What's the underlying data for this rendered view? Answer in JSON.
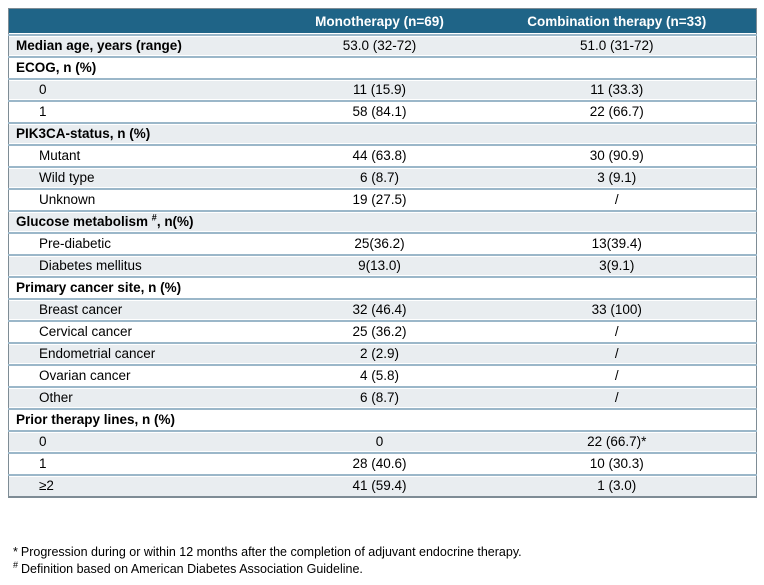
{
  "colors": {
    "header_bg": "#1F6487",
    "header_text": "#FFFFFF",
    "shaded_row": "#E9EDF0",
    "row_line": "#9BB7C9",
    "outer_border": "#7E8C95",
    "text": "#000000"
  },
  "table": {
    "columns": [
      "",
      "Monotherapy (n=69)",
      "Combination therapy (n=33)"
    ],
    "rows": [
      {
        "label": "Median age, years (range)",
        "bold": true,
        "shaded": true,
        "values": [
          "53.0 (32-72)",
          "51.0 (31-72)"
        ]
      },
      {
        "label": "ECOG, n (%)",
        "section": true,
        "shaded": false
      },
      {
        "label": "0",
        "indent": true,
        "shaded": true,
        "values": [
          "11 (15.9)",
          "11 (33.3)"
        ]
      },
      {
        "label": "1",
        "indent": true,
        "shaded": false,
        "values": [
          "58 (84.1)",
          "22 (66.7)"
        ]
      },
      {
        "label": "PIK3CA-status, n (%)",
        "section": true,
        "shaded": true
      },
      {
        "label": "Mutant",
        "indent": true,
        "shaded": false,
        "values": [
          "44 (63.8)",
          "30 (90.9)"
        ]
      },
      {
        "label": "Wild type",
        "indent": true,
        "shaded": true,
        "values": [
          "6 (8.7)",
          "3 (9.1)"
        ]
      },
      {
        "label": "Unknown",
        "indent": true,
        "shaded": false,
        "values": [
          "19 (27.5)",
          "/"
        ]
      },
      {
        "label": "Glucose metabolism ",
        "label_sup": "#",
        "label_post": ", n(%)",
        "section": true,
        "shaded": true
      },
      {
        "label": "Pre-diabetic",
        "indent": true,
        "shaded": false,
        "values": [
          "25(36.2)",
          "13(39.4)"
        ]
      },
      {
        "label": "Diabetes mellitus",
        "indent": true,
        "shaded": true,
        "values": [
          "9(13.0)",
          "3(9.1)"
        ]
      },
      {
        "label": "Primary cancer site, n (%)",
        "section": true,
        "shaded": false
      },
      {
        "label": "Breast cancer",
        "indent": true,
        "shaded": true,
        "values": [
          "32 (46.4)",
          "33 (100)"
        ]
      },
      {
        "label": "Cervical cancer",
        "indent": true,
        "shaded": false,
        "values": [
          "25 (36.2)",
          "/"
        ]
      },
      {
        "label": "Endometrial cancer",
        "indent": true,
        "shaded": true,
        "values": [
          "2 (2.9)",
          "/"
        ]
      },
      {
        "label": "Ovarian cancer",
        "indent": true,
        "shaded": false,
        "values": [
          "4 (5.8)",
          "/"
        ]
      },
      {
        "label": "Other",
        "indent": true,
        "shaded": true,
        "values": [
          "6 (8.7)",
          "/"
        ]
      },
      {
        "label": "Prior therapy lines, n (%)",
        "section": true,
        "shaded": false
      },
      {
        "label": "0",
        "indent": true,
        "shaded": true,
        "values": [
          "0",
          "22 (66.7)*"
        ]
      },
      {
        "label": "1",
        "indent": true,
        "shaded": false,
        "values": [
          "28 (40.6)",
          "10 (30.3)"
        ]
      },
      {
        "label": "≥2",
        "indent": true,
        "shaded": true,
        "values": [
          "41 (59.4)",
          "1 (3.0)"
        ]
      }
    ]
  },
  "footnotes": [
    {
      "marker": "*",
      "sup": false,
      "text": "Progression during or within 12 months after the completion of adjuvant endocrine therapy."
    },
    {
      "marker": "#",
      "sup": true,
      "text": "Definition based on American Diabetes Association Guideline."
    }
  ]
}
